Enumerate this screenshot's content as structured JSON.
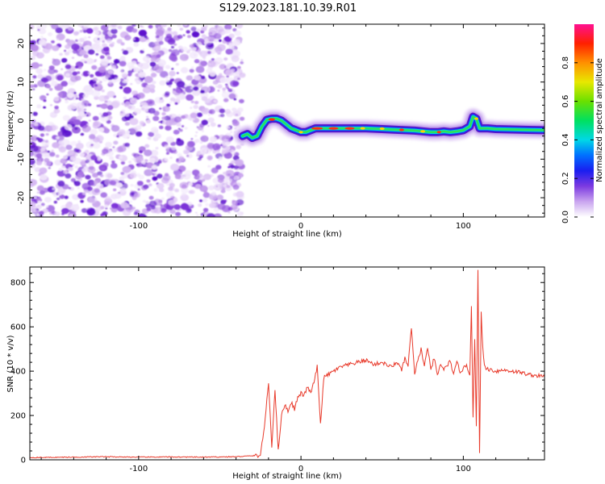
{
  "title": "S129.2023.181.10.39.R01",
  "chart_data": [
    {
      "type": "heatmap",
      "title": "S129.2023.181.10.39.R01",
      "xlabel": "Height of straight line (km)",
      "ylabel": "Frequency (Hz)",
      "xlim": [
        -167,
        150
      ],
      "ylim": [
        -25,
        25
      ],
      "x_ticks": [
        -100,
        0,
        100
      ],
      "y_ticks": [
        -20,
        -10,
        0,
        10,
        20
      ],
      "x_tick_labels": [
        "-100",
        "0",
        "100"
      ],
      "y_tick_labels": [
        "-20",
        "-10",
        "0",
        "10",
        "20"
      ],
      "noise_region": {
        "x": [
          -167,
          -36
        ],
        "y": [
          -25,
          25
        ]
      },
      "ridge": {
        "x": [
          -36,
          -33,
          -30,
          -27,
          -24,
          -21,
          -18,
          -15,
          -12,
          -9,
          -6,
          -3,
          0,
          3,
          6,
          9,
          12,
          20,
          30,
          40,
          50,
          60,
          70,
          80,
          84,
          88,
          92,
          96,
          100,
          104,
          106,
          108,
          110,
          115,
          120,
          130,
          140,
          150
        ],
        "y": [
          -4,
          -3.5,
          -4.5,
          -4,
          -1.5,
          0.2,
          0.5,
          0.5,
          0,
          -1,
          -2,
          -2.5,
          -3,
          -3,
          -2.5,
          -2,
          -2,
          -2,
          -2,
          -2,
          -2.2,
          -2.4,
          -2.6,
          -3,
          -3,
          -2.8,
          -3,
          -2.8,
          -2.5,
          -1.5,
          1,
          0.5,
          -2,
          -2,
          -2.2,
          -2.3,
          -2.4,
          -2.5
        ]
      },
      "colorbar": {
        "label": "Normalized spectral amplitude",
        "ticks": [
          "0.0",
          "0.2",
          "0.4",
          "0.6",
          "0.8"
        ],
        "tick_values": [
          0.0,
          0.2,
          0.4,
          0.6,
          0.8
        ],
        "range": [
          0,
          1
        ]
      }
    },
    {
      "type": "line",
      "xlabel": "Height of straight line (km)",
      "ylabel": "SNR (10 * v/v)",
      "xlim": [
        -167,
        150
      ],
      "ylim": [
        0,
        870
      ],
      "x_ticks": [
        -100,
        0,
        100
      ],
      "y_ticks": [
        0,
        200,
        400,
        600,
        800
      ],
      "x_tick_labels": [
        "-100",
        "0",
        "100"
      ],
      "y_tick_labels": [
        "0",
        "200",
        "400",
        "600",
        "800"
      ],
      "color": "#e8392a",
      "series": [
        {
          "x": [
            -167,
            -140,
            -120,
            -100,
            -80,
            -60,
            -40,
            -25,
            -22,
            -20,
            -18,
            -16,
            -14,
            -12,
            -10,
            -8,
            -6,
            -4,
            -2,
            0,
            2,
            4,
            6,
            8,
            10,
            12,
            14,
            16,
            18,
            20,
            25,
            30,
            35,
            40,
            45,
            50,
            55,
            60,
            62,
            64,
            66,
            68,
            70,
            72,
            74,
            76,
            78,
            80,
            82,
            84,
            86,
            88,
            90,
            92,
            94,
            96,
            98,
            100,
            102,
            104,
            105,
            106,
            107,
            108,
            109,
            110,
            111,
            112,
            113,
            114,
            115,
            120,
            125,
            130,
            135,
            140,
            145,
            150
          ],
          "y": [
            10,
            12,
            14,
            12,
            13,
            12,
            14,
            20,
            180,
            350,
            60,
            320,
            40,
            200,
            250,
            220,
            260,
            230,
            280,
            300,
            290,
            330,
            300,
            350,
            420,
            160,
            370,
            380,
            390,
            400,
            420,
            430,
            440,
            450,
            430,
            440,
            420,
            440,
            400,
            460,
            420,
            600,
            380,
            450,
            500,
            420,
            510,
            400,
            460,
            380,
            430,
            410,
            420,
            450,
            380,
            440,
            400,
            410,
            430,
            380,
            700,
            200,
            540,
            150,
            850,
            30,
            660,
            500,
            430,
            410,
            410,
            400,
            405,
            400,
            395,
            385,
            380,
            375
          ]
        }
      ]
    }
  ]
}
